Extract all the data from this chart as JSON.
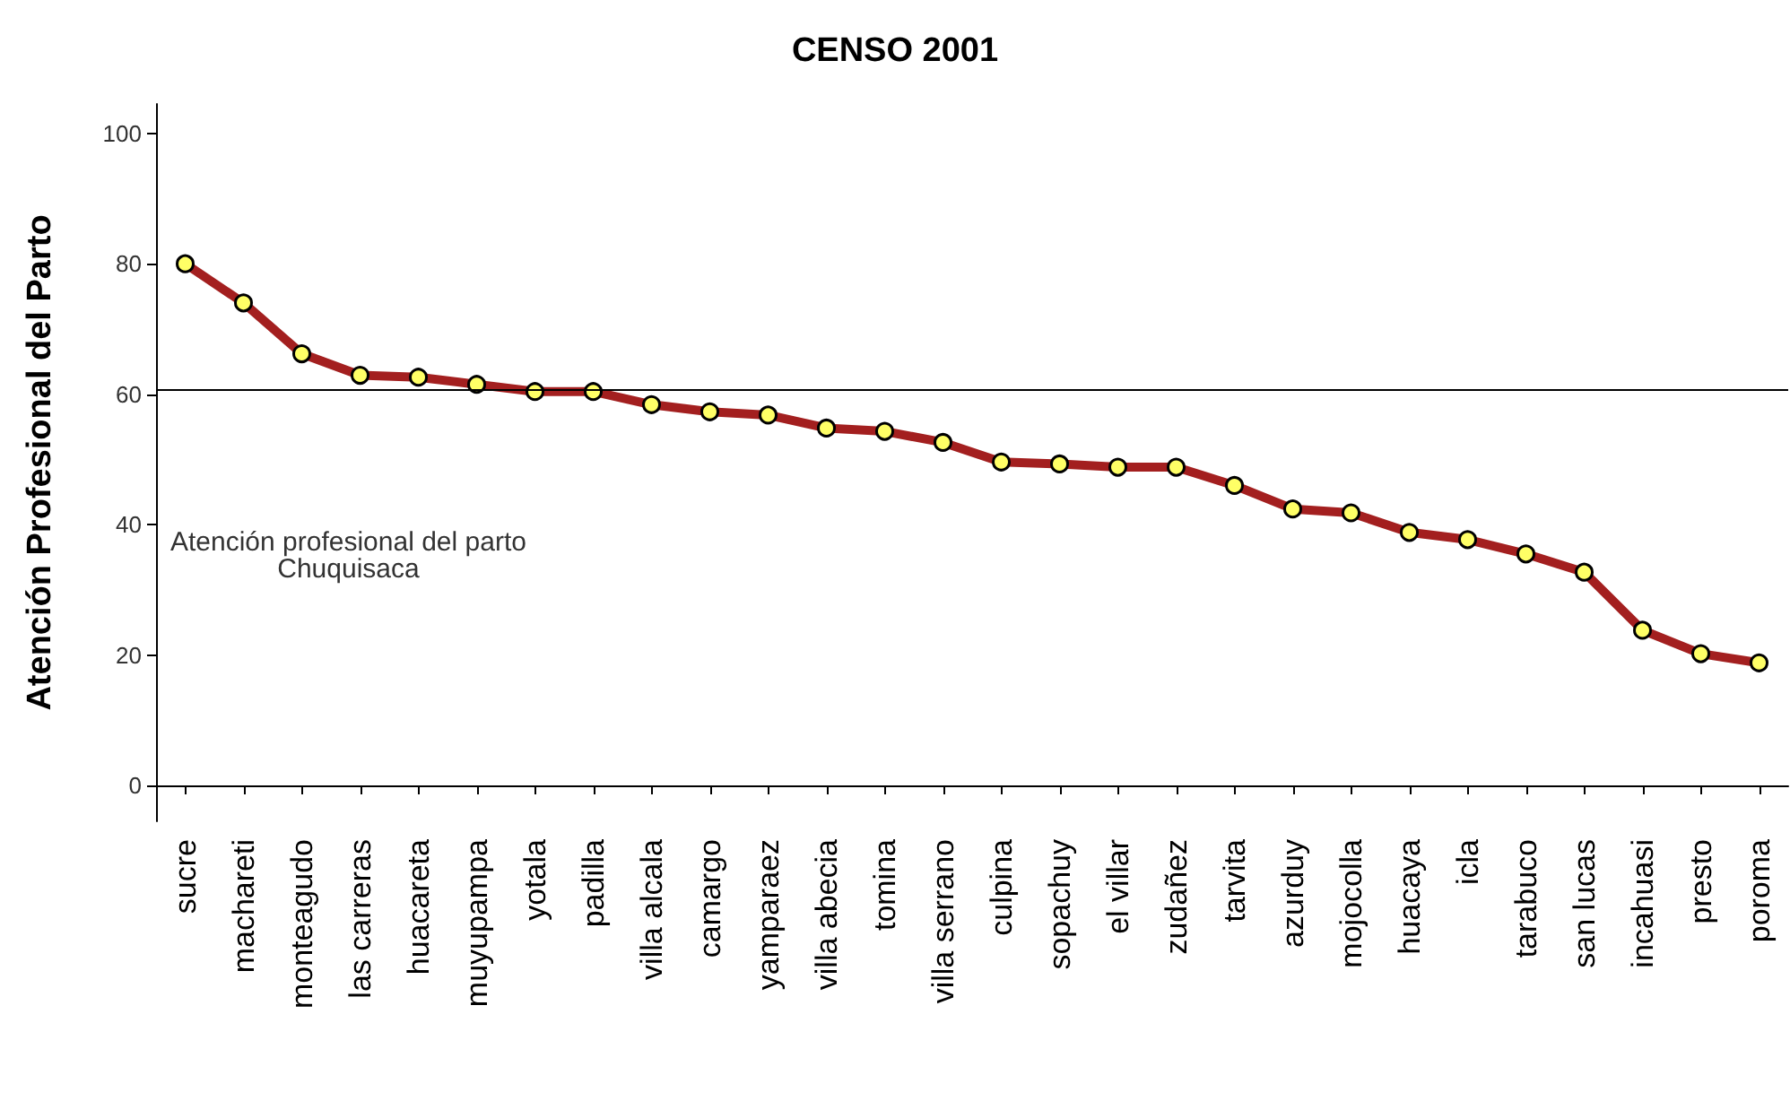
{
  "chart_data": {
    "type": "line",
    "title": "CENSO 2001",
    "ylabel": "Atención Profesional del Parto",
    "categories": [
      "sucre",
      "machareti",
      "monteagudo",
      "las carreras",
      "huacareta",
      "muyupampa",
      "yotala",
      "padilla",
      "villa alcala",
      "camargo",
      "yamparaez",
      "villa abecia",
      "tomina",
      "villa serrano",
      "culpina",
      "sopachuy",
      "el villar",
      "zudañez",
      "tarvita",
      "azurduy",
      "mojocolla",
      "huacaya",
      "icla",
      "tarabuco",
      "san lucas",
      "incahuasi",
      "presto",
      "poroma"
    ],
    "series": [
      {
        "color": "#a31f1f",
        "values": [
          80.0,
          74.0,
          66.2,
          62.9,
          62.6,
          61.5,
          60.4,
          60.4,
          58.4,
          57.3,
          56.8,
          54.8,
          54.3,
          52.6,
          49.6,
          49.3,
          48.8,
          48.8,
          46.0,
          42.4,
          41.8,
          38.8,
          37.7,
          35.5,
          32.7,
          23.8,
          20.2,
          18.8
        ]
      }
    ],
    "ylim": [
      -5.5,
      104.5
    ],
    "yticks": [
      0,
      20,
      40,
      60,
      80,
      100
    ],
    "marker": "circle",
    "line_style": "solid",
    "ref_lines": [
      {
        "axis": "y",
        "value": 60.7,
        "color": "#000000"
      }
    ],
    "annotations": [
      "Atención profesional del parto\nChuquisaca"
    ]
  }
}
